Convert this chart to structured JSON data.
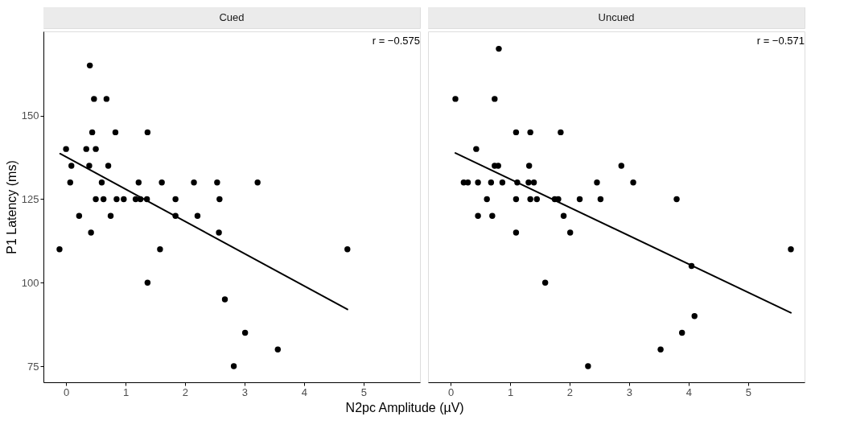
{
  "chart_data": [
    {
      "type": "scatter",
      "title": "Cued",
      "ylabel": "P1 Latency (ms)",
      "xlabel": "N2pc Amplitude (µV)",
      "annotations": [
        "r = −0.575"
      ],
      "xlim": [
        -0.38,
        5.95
      ],
      "xticks": [
        0,
        1,
        2,
        3,
        4,
        5
      ],
      "ylim": [
        70.2,
        175.2
      ],
      "yticks": [
        75,
        100,
        125,
        150
      ],
      "grid": false,
      "series": [
        {
          "type": "scatter",
          "marker": "circle",
          "color": "#000000",
          "x": [
            0.4,
            0.47,
            0.68,
            0.44,
            0.83,
            1.37,
            0.0,
            0.34,
            0.5,
            0.09,
            0.39,
            0.71,
            0.07,
            0.6,
            1.22,
            1.61,
            2.15,
            2.54,
            3.22,
            0.5,
            0.63,
            0.85,
            0.97,
            1.17,
            1.25,
            1.36,
            1.84,
            2.58,
            0.22,
            0.75,
            1.84,
            2.21,
            0.42,
            2.57,
            -0.11,
            1.58,
            4.73,
            1.37,
            2.67,
            3.01,
            3.56,
            2.82
          ],
          "values": [
            165,
            155,
            155,
            145,
            145,
            145,
            140,
            140,
            140,
            135,
            135,
            135,
            130,
            130,
            130,
            130,
            130,
            130,
            130,
            125,
            125,
            125,
            125,
            125,
            125,
            125,
            125,
            125,
            120,
            120,
            120,
            120,
            115,
            115,
            110,
            110,
            110,
            100,
            95,
            85,
            80,
            75
          ]
        },
        {
          "type": "line",
          "marker": "none",
          "line_style": "solid",
          "color": "#000000",
          "x": [
            -0.1,
            4.73
          ],
          "values": [
            138.6,
            92.0
          ]
        }
      ]
    },
    {
      "type": "scatter",
      "title": "Uncued",
      "annotations": [
        "r = −0.571"
      ],
      "xlim": [
        -0.38,
        5.95
      ],
      "xticks": [
        0,
        1,
        2,
        3,
        4,
        5
      ],
      "ylim": [
        70.2,
        175.2
      ],
      "tick_labels": "x",
      "grid": false,
      "series": [
        {
          "type": "scatter",
          "marker": "circle",
          "color": "#000000",
          "x": [
            0.81,
            0.08,
            0.74,
            1.1,
            1.34,
            1.85,
            0.43,
            0.74,
            0.8,
            1.32,
            2.87,
            0.22,
            0.29,
            0.46,
            0.68,
            0.87,
            1.12,
            1.31,
            1.4,
            2.46,
            3.07,
            0.61,
            1.1,
            1.34,
            1.45,
            1.75,
            1.81,
            2.17,
            2.52,
            3.8,
            0.46,
            0.7,
            1.9,
            1.1,
            2.01,
            5.72,
            4.05,
            1.59,
            4.1,
            3.89,
            3.53,
            2.31
          ],
          "values": [
            170,
            155,
            155,
            145,
            145,
            145,
            140,
            135,
            135,
            135,
            135,
            130,
            130,
            130,
            130,
            130,
            130,
            130,
            130,
            130,
            130,
            125,
            125,
            125,
            125,
            125,
            125,
            125,
            125,
            125,
            120,
            120,
            120,
            115,
            115,
            110,
            105,
            100,
            90,
            85,
            80,
            75
          ]
        },
        {
          "type": "line",
          "marker": "none",
          "line_style": "solid",
          "color": "#000000",
          "x": [
            0.08,
            5.72
          ],
          "values": [
            138.8,
            91.0
          ]
        }
      ]
    }
  ]
}
